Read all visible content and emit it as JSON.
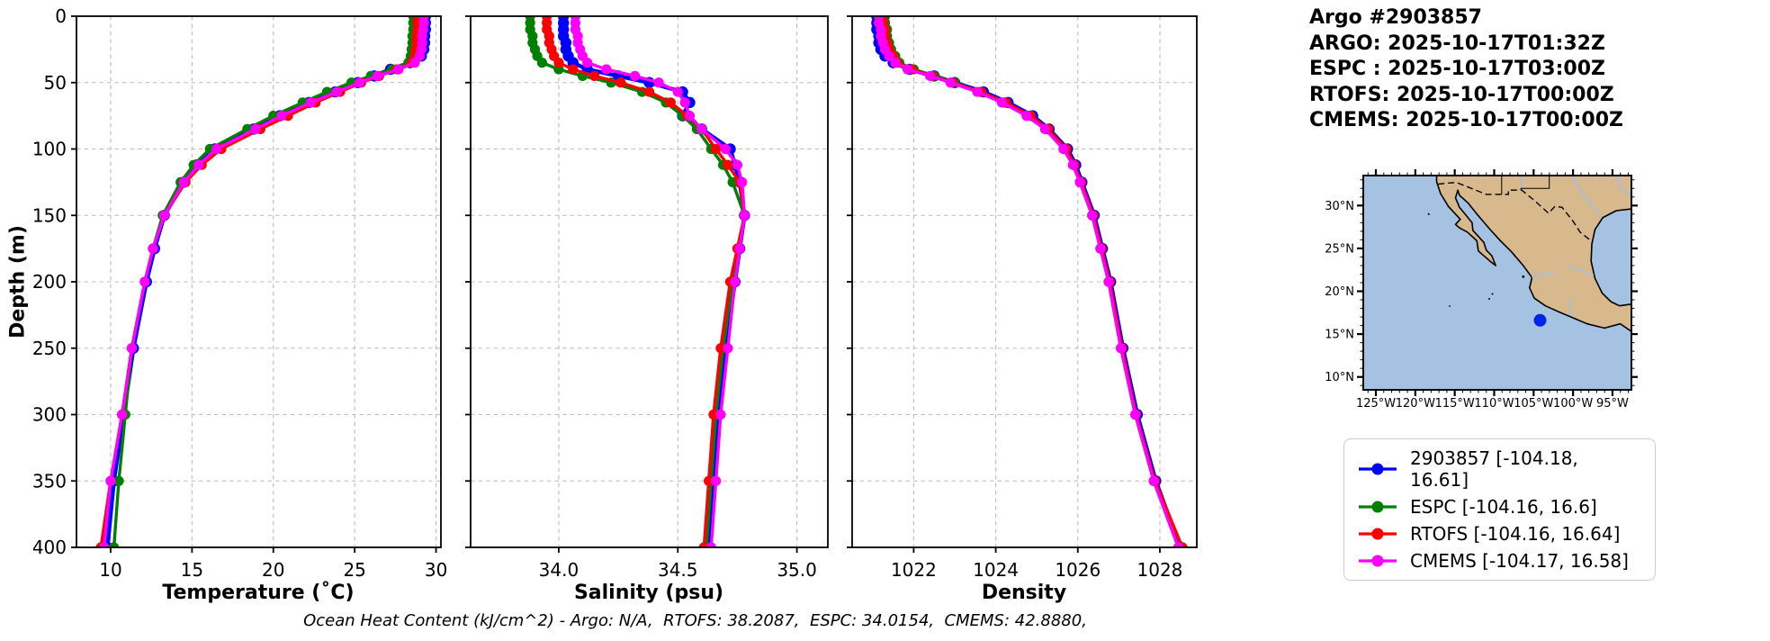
{
  "header": {
    "title": "Argo #2903857",
    "lines": [
      "ARGO: 2025-10-17T01:32Z",
      "ESPC : 2025-10-17T03:00Z",
      "RTOFS: 2025-10-17T00:00Z",
      "CMEMS: 2025-10-17T00:00Z"
    ]
  },
  "ylabel": "Depth (m)",
  "footer_note": "Ocean Heat Content (kJ/cm^2) - Argo: N/A,  RTOFS: 38.2087,  ESPC: 34.0154,  CMEMS: 42.8880,",
  "depth_ticks": [
    0,
    50,
    100,
    150,
    200,
    250,
    300,
    350,
    400
  ],
  "chart_data": [
    {
      "type": "line",
      "id": "temperature",
      "xlabel": "Temperature (˚C)",
      "ylabel": "Depth (m)",
      "xlim": [
        7.9,
        30.3
      ],
      "ylim": [
        400,
        0
      ],
      "xticks": [
        10,
        15,
        20,
        25,
        30
      ],
      "xtick_labels": [
        "10",
        "15",
        "20",
        "25",
        "30"
      ],
      "grid": true,
      "depths": [
        0,
        5,
        10,
        15,
        20,
        25,
        30,
        35,
        40,
        45,
        50,
        57,
        65,
        75,
        85,
        100,
        112,
        125,
        150,
        175,
        200,
        250,
        300,
        350,
        400
      ],
      "series": [
        {
          "name": "2903857",
          "color": "#0000ff",
          "values": [
            29.35,
            29.35,
            29.35,
            29.3,
            29.3,
            29.25,
            29.1,
            28.4,
            27.2,
            26.2,
            25.2,
            23.8,
            22.2,
            20.4,
            18.8,
            16.4,
            15.3,
            14.5,
            13.3,
            12.7,
            12.2,
            11.4,
            10.8,
            10.2,
            9.8
          ]
        },
        {
          "name": "ESPC",
          "color": "#008000",
          "values": [
            28.6,
            28.6,
            28.6,
            28.55,
            28.55,
            28.5,
            28.45,
            28.3,
            27.3,
            26.0,
            24.8,
            23.3,
            21.8,
            20.0,
            18.4,
            16.1,
            15.1,
            14.3,
            13.2,
            12.6,
            12.1,
            11.3,
            10.9,
            10.5,
            10.2
          ]
        },
        {
          "name": "RTOFS",
          "color": "#ff0000",
          "values": [
            28.85,
            28.85,
            28.85,
            28.8,
            28.8,
            28.75,
            28.7,
            28.5,
            27.6,
            26.5,
            25.4,
            24.1,
            22.6,
            20.9,
            19.2,
            16.8,
            15.6,
            14.6,
            13.3,
            12.6,
            12.1,
            11.3,
            10.7,
            10.0,
            9.4
          ]
        },
        {
          "name": "CMEMS",
          "color": "#ff00ff",
          "values": [
            29.25,
            29.25,
            29.2,
            29.15,
            29.15,
            29.1,
            29.0,
            28.7,
            27.7,
            26.4,
            25.3,
            23.9,
            22.3,
            20.5,
            18.9,
            16.5,
            15.4,
            14.5,
            13.3,
            12.6,
            12.1,
            11.3,
            10.7,
            10.0,
            9.6
          ]
        }
      ]
    },
    {
      "type": "line",
      "id": "salinity",
      "xlabel": "Salinity (psu)",
      "ylabel": "Depth (m)",
      "xlim": [
        33.63,
        35.13
      ],
      "ylim": [
        400,
        0
      ],
      "xticks": [
        34.0,
        34.5,
        35.0
      ],
      "xtick_labels": [
        "34.0",
        "34.5",
        "35.0"
      ],
      "grid": true,
      "depths": [
        0,
        5,
        10,
        15,
        20,
        25,
        30,
        35,
        40,
        45,
        50,
        57,
        65,
        75,
        85,
        100,
        112,
        125,
        150,
        175,
        200,
        250,
        300,
        350,
        400
      ],
      "series": [
        {
          "name": "2903857",
          "color": "#0000ff",
          "values": [
            34.02,
            34.02,
            34.02,
            34.02,
            34.03,
            34.03,
            34.04,
            34.06,
            34.12,
            34.25,
            34.38,
            34.52,
            34.55,
            34.52,
            34.6,
            34.72,
            34.74,
            34.76,
            34.78,
            34.76,
            34.74,
            34.7,
            34.67,
            34.65,
            34.63
          ]
        },
        {
          "name": "ESPC",
          "color": "#008000",
          "values": [
            33.88,
            33.88,
            33.88,
            33.89,
            33.89,
            33.9,
            33.91,
            33.93,
            34.0,
            34.1,
            34.22,
            34.35,
            34.45,
            34.52,
            34.58,
            34.64,
            34.69,
            34.73,
            34.78,
            34.76,
            34.73,
            34.69,
            34.66,
            34.64,
            34.62
          ]
        },
        {
          "name": "RTOFS",
          "color": "#ff0000",
          "values": [
            33.95,
            33.95,
            33.95,
            33.96,
            33.96,
            33.97,
            33.98,
            34.0,
            34.06,
            34.15,
            34.26,
            34.38,
            34.47,
            34.54,
            34.6,
            34.66,
            34.71,
            34.76,
            34.78,
            34.75,
            34.72,
            34.68,
            34.65,
            34.63,
            34.61
          ]
        },
        {
          "name": "CMEMS",
          "color": "#ff00ff",
          "values": [
            34.07,
            34.07,
            34.07,
            34.08,
            34.08,
            34.09,
            34.1,
            34.12,
            34.2,
            34.32,
            34.42,
            34.5,
            34.53,
            34.55,
            34.6,
            34.7,
            34.75,
            34.77,
            34.78,
            34.76,
            34.74,
            34.71,
            34.68,
            34.66,
            34.64
          ]
        }
      ]
    },
    {
      "type": "line",
      "id": "density",
      "xlabel": "Density",
      "ylabel": "Depth (m)",
      "xlim": [
        1020.5,
        1028.9
      ],
      "ylim": [
        400,
        0
      ],
      "xticks": [
        1022,
        1024,
        1026,
        1028
      ],
      "xtick_labels": [
        "1022",
        "1024",
        "1026",
        "1028"
      ],
      "grid": true,
      "depths": [
        0,
        5,
        10,
        15,
        20,
        25,
        30,
        35,
        40,
        45,
        50,
        57,
        65,
        75,
        85,
        100,
        112,
        125,
        150,
        175,
        200,
        250,
        300,
        350,
        400
      ],
      "series": [
        {
          "name": "2903857",
          "color": "#0000ff",
          "values": [
            1021.1,
            1021.1,
            1021.1,
            1021.15,
            1021.15,
            1021.2,
            1021.3,
            1021.5,
            1021.9,
            1022.5,
            1023.0,
            1023.7,
            1024.3,
            1024.9,
            1025.3,
            1025.75,
            1025.95,
            1026.1,
            1026.4,
            1026.6,
            1026.8,
            1027.1,
            1027.45,
            1027.9,
            1028.5
          ]
        },
        {
          "name": "ESPC",
          "color": "#008000",
          "values": [
            1021.3,
            1021.3,
            1021.35,
            1021.35,
            1021.4,
            1021.45,
            1021.55,
            1021.65,
            1022.0,
            1022.5,
            1023.0,
            1023.62,
            1024.2,
            1024.8,
            1025.25,
            1025.7,
            1025.9,
            1026.05,
            1026.35,
            1026.55,
            1026.75,
            1027.05,
            1027.4,
            1027.85,
            1028.45
          ]
        },
        {
          "name": "RTOFS",
          "color": "#ff0000",
          "values": [
            1021.25,
            1021.25,
            1021.3,
            1021.3,
            1021.35,
            1021.4,
            1021.5,
            1021.6,
            1021.95,
            1022.45,
            1022.95,
            1023.65,
            1024.25,
            1024.85,
            1025.28,
            1025.72,
            1025.92,
            1026.08,
            1026.38,
            1026.58,
            1026.78,
            1027.08,
            1027.42,
            1027.88,
            1028.55
          ]
        },
        {
          "name": "CMEMS",
          "color": "#ff00ff",
          "values": [
            1021.15,
            1021.15,
            1021.2,
            1021.2,
            1021.25,
            1021.3,
            1021.4,
            1021.55,
            1021.85,
            1022.4,
            1022.9,
            1023.55,
            1024.15,
            1024.75,
            1025.2,
            1025.65,
            1025.88,
            1026.05,
            1026.35,
            1026.55,
            1026.75,
            1027.05,
            1027.4,
            1027.85,
            1028.45
          ]
        }
      ]
    }
  ],
  "map": {
    "extent": [
      -126.6,
      -92.6,
      8.5,
      33.5
    ],
    "lon_ticks": [
      {
        "v": -125,
        "label": "125°W"
      },
      {
        "v": -120,
        "label": "120°W"
      },
      {
        "v": -115,
        "label": "115°W"
      },
      {
        "v": -110,
        "label": "110°W"
      },
      {
        "v": -105,
        "label": "105°W"
      },
      {
        "v": -100,
        "label": "100°W"
      },
      {
        "v": -95,
        "label": "95°W"
      }
    ],
    "lat_ticks": [
      {
        "v": 30,
        "label": "30°N"
      },
      {
        "v": 25,
        "label": "25°N"
      },
      {
        "v": 20,
        "label": "20°N"
      },
      {
        "v": 15,
        "label": "15°N"
      },
      {
        "v": 10,
        "label": "10°N"
      }
    ],
    "marker": {
      "lon": -104.18,
      "lat": 16.61,
      "color": "#0023e9"
    },
    "ocean_color": "#a5c2e2",
    "land_color": "#d8b98e"
  },
  "legend": {
    "items": [
      {
        "label": "2903857 [-104.18, 16.61]",
        "color": "#0000ff"
      },
      {
        "label": "ESPC [-104.16, 16.6]",
        "color": "#008000"
      },
      {
        "label": "RTOFS [-104.16, 16.64]",
        "color": "#ff0000"
      },
      {
        "label": "CMEMS [-104.17, 16.58]",
        "color": "#ff00ff"
      }
    ]
  }
}
